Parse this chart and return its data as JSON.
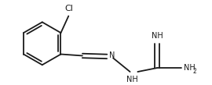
{
  "bg_color": "#ffffff",
  "line_color": "#1a1a1a",
  "text_color": "#1a1a1a",
  "line_width": 1.3,
  "font_size": 7.0,
  "font_size_sub": 5.5,
  "cl_label": "Cl",
  "n_label": "N",
  "nh_label": "NH",
  "imine_label": "NH",
  "nh2_label": "NH",
  "sub2": "2"
}
